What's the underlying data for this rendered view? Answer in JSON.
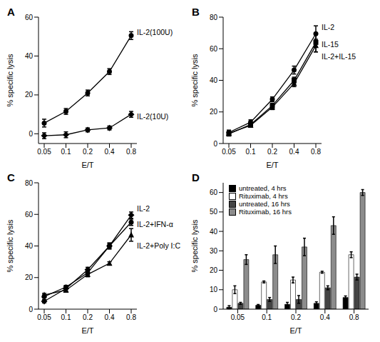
{
  "chart_data": [
    {
      "type": "line",
      "title": "A",
      "xlabel": "E/T",
      "ylabel": "% specific lysis",
      "categories": [
        0.05,
        0.1,
        0.2,
        0.4,
        0.8
      ],
      "ylim": [
        -5,
        60
      ],
      "yticks": [
        0,
        20,
        40,
        60
      ],
      "series": [
        {
          "name": "IL-2(100U)",
          "color": "#000000",
          "marker": "circle",
          "values": [
            5.5,
            11.5,
            21,
            32,
            50.5
          ],
          "errors": [
            2,
            1.5,
            1.5,
            1.5,
            2
          ]
        },
        {
          "name": "IL-2(10U)",
          "color": "#000000",
          "marker": "diamond",
          "values": [
            -1,
            -0.5,
            2,
            3,
            10
          ],
          "errors": [
            1.5,
            1.5,
            1,
            1,
            1.5
          ]
        }
      ]
    },
    {
      "type": "line",
      "title": "B",
      "xlabel": "E/T",
      "ylabel": "% specific lysis",
      "categories": [
        0.05,
        0.1,
        0.2,
        0.4,
        0.8
      ],
      "ylim": [
        0,
        80
      ],
      "yticks": [
        0,
        20,
        40,
        60,
        80
      ],
      "series": [
        {
          "name": "IL-2",
          "color": "#000000",
          "marker": "circle",
          "values": [
            7,
            13.5,
            28,
            46.5,
            69.5
          ],
          "errors": [
            1.5,
            1.5,
            1.5,
            2.5,
            5
          ]
        },
        {
          "name": "IL-15",
          "color": "#000000",
          "marker": "square",
          "values": [
            6,
            12,
            24,
            40,
            64
          ],
          "errors": [
            1,
            1,
            1.5,
            2,
            6
          ]
        },
        {
          "name": "IL-2+IL-15",
          "color": "#000000",
          "marker": "triangle",
          "values": [
            6.5,
            11.5,
            23,
            38,
            62
          ],
          "errors": [
            1,
            1,
            1.5,
            2,
            4
          ]
        }
      ]
    },
    {
      "type": "line",
      "title": "C",
      "xlabel": "E/T",
      "ylabel": "% specific lysis",
      "categories": [
        0.05,
        0.1,
        0.2,
        0.4,
        0.8
      ],
      "ylim": [
        0,
        80
      ],
      "yticks": [
        0,
        20,
        40,
        60,
        80
      ],
      "series": [
        {
          "name": "IL-2",
          "color": "#000000",
          "marker": "diamond",
          "values": [
            5,
            13,
            25,
            40,
            59.5
          ],
          "errors": [
            1,
            1.5,
            1.5,
            2,
            2
          ]
        },
        {
          "name": "IL-2+IFN-α",
          "color": "#000000",
          "marker": "circle",
          "values": [
            8,
            14,
            23,
            40,
            55
          ],
          "errors": [
            1,
            1,
            1,
            1.5,
            2
          ]
        },
        {
          "name": "IL-2+Poly I:C",
          "color": "#000000",
          "marker": "triangle",
          "values": [
            9,
            12,
            22,
            29,
            47
          ],
          "errors": [
            1,
            1,
            1.5,
            1,
            4
          ]
        }
      ]
    },
    {
      "type": "bar",
      "title": "D",
      "xlabel": "E/T",
      "ylabel": "% specific lysis",
      "categories": [
        0.05,
        0.1,
        0.2,
        0.4,
        0.8
      ],
      "ylim": [
        0,
        65
      ],
      "yticks": [
        0,
        10,
        20,
        30,
        40,
        50,
        60
      ],
      "legend": "upper left",
      "series": [
        {
          "name": "untreated, 4 hrs",
          "color": "#000000",
          "values": [
            1,
            2,
            2.5,
            3,
            6
          ],
          "errors": [
            0.8,
            0.4,
            1,
            0.8,
            0.8
          ]
        },
        {
          "name": "Rituximab, 4 hrs",
          "color": "#ffffff",
          "values": [
            10,
            14,
            15,
            19,
            28
          ],
          "errors": [
            2,
            0.5,
            1.5,
            0.5,
            1.5
          ]
        },
        {
          "name": "untreated, 16 hrs",
          "color": "#444444",
          "values": [
            3,
            5,
            5,
            11,
            16.5
          ],
          "errors": [
            0.5,
            1,
            2,
            1,
            1.5
          ]
        },
        {
          "name": "Rituximab, 16 hrs",
          "color": "#8c8c8c",
          "values": [
            25.5,
            28,
            32,
            43,
            60
          ],
          "errors": [
            2.5,
            4.5,
            4.5,
            4.5,
            1.5
          ]
        }
      ]
    }
  ]
}
